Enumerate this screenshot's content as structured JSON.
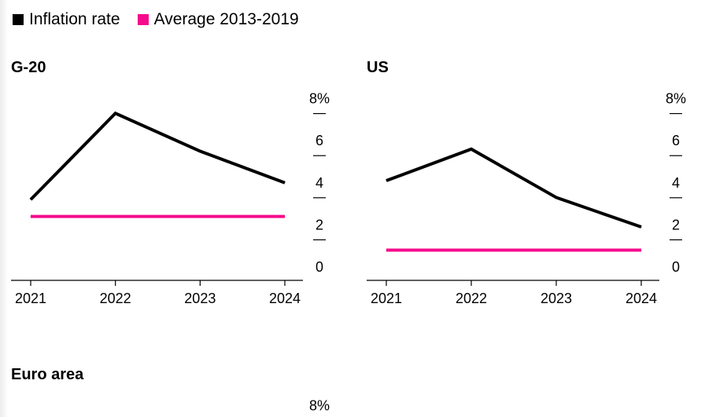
{
  "legend": {
    "items": [
      {
        "label": "Inflation rate",
        "color": "#000000"
      },
      {
        "label": "Average 2013-2019",
        "color": "#f50a8c"
      }
    ]
  },
  "chart_data": [
    {
      "type": "line",
      "title": "G-20",
      "x": [
        "2021",
        "2022",
        "2023",
        "2024"
      ],
      "series": [
        {
          "values": [
            3.8,
            7.9,
            6.1,
            4.6
          ],
          "color": "#000000"
        },
        {
          "values": [
            3.0,
            3.0,
            3.0,
            3.0
          ],
          "color": "#f50a8c"
        }
      ],
      "ylim": [
        0,
        8
      ],
      "yticks": [
        "0",
        "2",
        "4",
        "6",
        "8%"
      ],
      "ytick_values": [
        0,
        2,
        4,
        6,
        8
      ]
    },
    {
      "type": "line",
      "title": "US",
      "x": [
        "2021",
        "2022",
        "2023",
        "2024"
      ],
      "series": [
        {
          "values": [
            4.7,
            6.2,
            3.9,
            2.5
          ],
          "color": "#000000"
        },
        {
          "values": [
            1.4,
            1.4,
            1.4,
            1.4
          ],
          "color": "#f50a8c"
        }
      ],
      "ylim": [
        0,
        8
      ],
      "yticks": [
        "0",
        "2",
        "4",
        "6",
        "8%"
      ],
      "ytick_values": [
        0,
        2,
        4,
        6,
        8
      ]
    },
    {
      "type": "line",
      "title": "Euro area",
      "x": [],
      "series": [],
      "ylim": [
        0,
        8
      ],
      "yticks": [
        "8%"
      ],
      "ytick_values": [
        8
      ]
    }
  ]
}
